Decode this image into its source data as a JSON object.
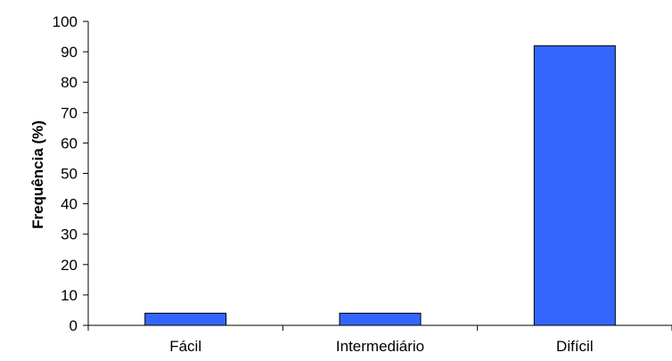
{
  "chart_data": {
    "type": "bar",
    "categories": [
      "Fácil",
      "Intermediário",
      "Difícil"
    ],
    "values": [
      4,
      4,
      92
    ],
    "title": "",
    "xlabel": "",
    "ylabel": "Frequência (%)",
    "ylim": [
      0,
      100
    ],
    "yticks": [
      0,
      10,
      20,
      30,
      40,
      50,
      60,
      70,
      80,
      90,
      100
    ],
    "grid": false,
    "legend": "none",
    "colors": {
      "bar_fill": "#3366FF",
      "bar_stroke": "#000000",
      "axis": "#000000"
    }
  }
}
